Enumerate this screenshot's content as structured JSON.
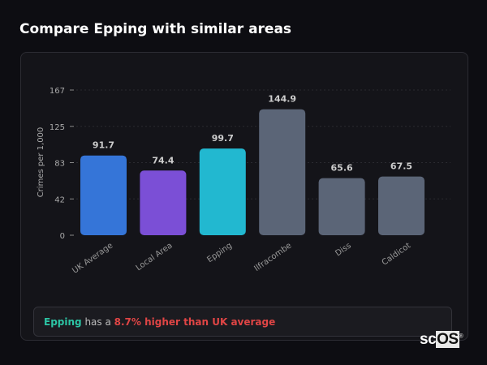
{
  "title": "Compare Epping with similar areas",
  "chart_data": {
    "type": "bar",
    "title": "",
    "ylabel": "Crimes per 1,000",
    "categories": [
      "UK Average",
      "Local Area",
      "Epping",
      "Ilfracombe",
      "Diss",
      "Caldicot"
    ],
    "values": [
      91.7,
      74.4,
      99.7,
      144.9,
      65.6,
      67.5
    ],
    "value_labels": [
      "91.7",
      "74.4",
      "99.7",
      "144.9",
      "65.6",
      "67.5"
    ],
    "colors": [
      "#3575d8",
      "#7b4fd6",
      "#22b8d0",
      "#5b6577",
      "#5b6577",
      "#5b6577"
    ],
    "yticks": [
      "0",
      "42",
      "83",
      "125",
      "167"
    ],
    "ytick_values": [
      0,
      41.75,
      83.5,
      125.25,
      167
    ],
    "ylim": [
      0,
      167
    ],
    "grid": true
  },
  "summary": {
    "area": "Epping",
    "middle": " has a ",
    "comparison": "8.7% higher than UK average",
    "comparison_color": "#e04545"
  },
  "logo": {
    "text_a": "sc",
    "text_b": "OS",
    "mark": "®"
  }
}
